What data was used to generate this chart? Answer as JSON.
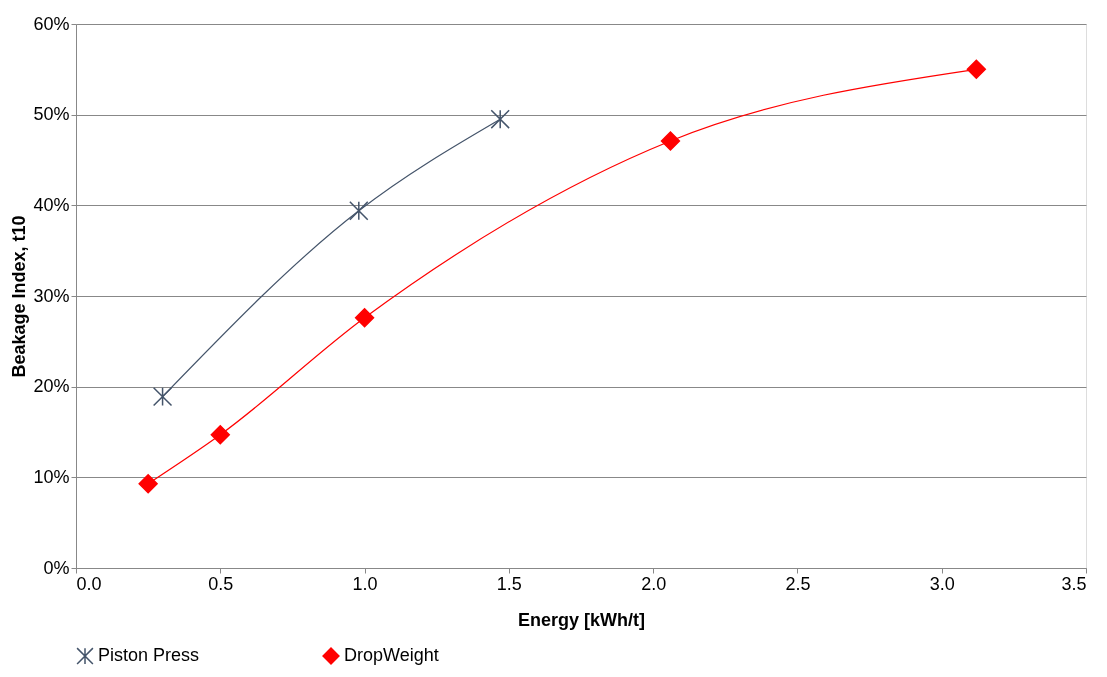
{
  "chart_data": {
    "type": "line",
    "xlabel": "Energy [kWh/t]",
    "ylabel": "Beakage Index, t10",
    "series": [
      {
        "name": "Piston Press",
        "color": "#44546a",
        "marker": "cross",
        "x": [
          0.3,
          0.98,
          1.47
        ],
        "values": [
          18.9,
          39.4,
          49.5
        ]
      },
      {
        "name": "DropWeight",
        "color": "#ff0000",
        "marker": "diamond",
        "x": [
          0.25,
          0.5,
          1.0,
          2.06,
          3.12
        ],
        "values": [
          9.3,
          14.7,
          27.6,
          47.1,
          55.0
        ]
      }
    ],
    "xlim": [
      0,
      3.5
    ],
    "xticks": [
      {
        "value": 0,
        "label": "0.0"
      },
      0.5,
      {
        "value": 1,
        "label": "1.0"
      },
      1.5,
      {
        "value": 2,
        "label": "2.0"
      },
      2.5,
      {
        "value": 3,
        "label": "3.0"
      },
      3.5
    ],
    "ylim": [
      0,
      60
    ],
    "yticks": [
      {
        "value": 0,
        "label": "0%"
      },
      {
        "value": 10,
        "label": "10%"
      },
      {
        "value": 20,
        "label": "20%"
      },
      {
        "value": 30,
        "label": "30%"
      },
      {
        "value": 40,
        "label": "40%"
      },
      {
        "value": 50,
        "label": "50%"
      },
      {
        "value": 60,
        "label": "60%"
      }
    ],
    "grid": "y",
    "legend": "bottom",
    "line_style": "solid"
  }
}
